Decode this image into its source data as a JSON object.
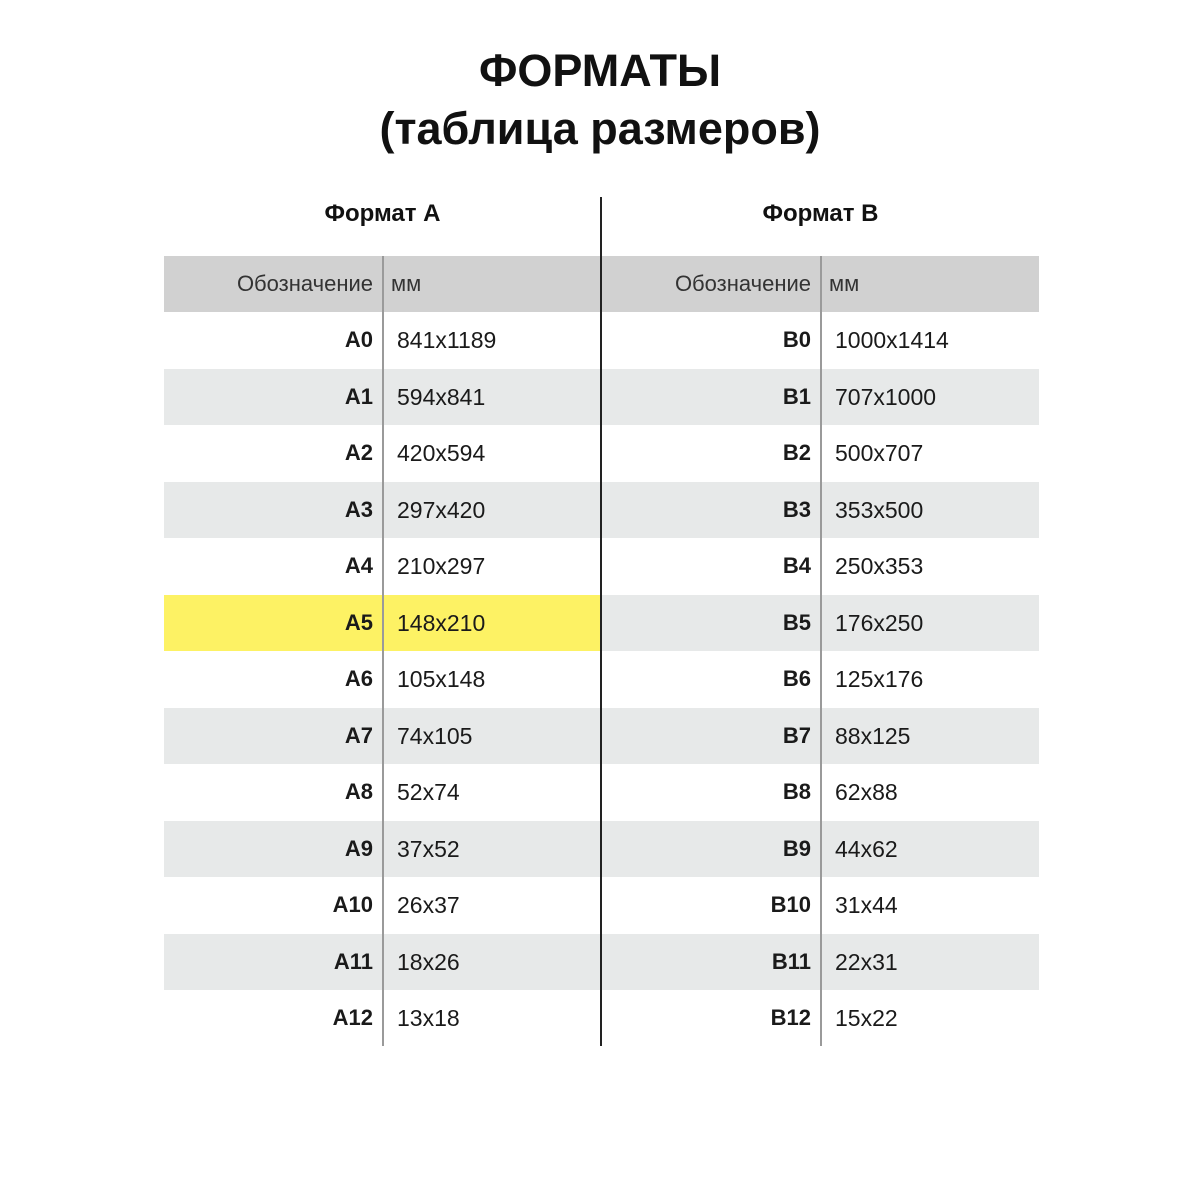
{
  "title_line1": "ФОРМАТЫ",
  "title_line2": "(таблица размеров)",
  "highlight_color": "#fdf264",
  "tables": [
    {
      "title": "Формат А",
      "header": {
        "code": "Обозначение",
        "size": "мм"
      },
      "highlighted": "A5",
      "rows": [
        {
          "code": "A0",
          "size": "841x1189"
        },
        {
          "code": "A1",
          "size": "594x841"
        },
        {
          "code": "A2",
          "size": "420x594"
        },
        {
          "code": "A3",
          "size": "297x420"
        },
        {
          "code": "A4",
          "size": "210x297"
        },
        {
          "code": "A5",
          "size": "148x210"
        },
        {
          "code": "A6",
          "size": "105x148"
        },
        {
          "code": "A7",
          "size": "74x105"
        },
        {
          "code": "A8",
          "size": "52x74"
        },
        {
          "code": "A9",
          "size": "37x52"
        },
        {
          "code": "A10",
          "size": "26x37"
        },
        {
          "code": "A11",
          "size": "18x26"
        },
        {
          "code": "A12",
          "size": "13x18"
        }
      ]
    },
    {
      "title": "Формат B",
      "header": {
        "code": "Обозначение",
        "size": "мм"
      },
      "highlighted": "",
      "rows": [
        {
          "code": "B0",
          "size": "1000x1414"
        },
        {
          "code": "B1",
          "size": "707x1000"
        },
        {
          "code": "B2",
          "size": "500x707"
        },
        {
          "code": "B3",
          "size": "353x500"
        },
        {
          "code": "B4",
          "size": "250x353"
        },
        {
          "code": "B5",
          "size": "176x250"
        },
        {
          "code": "B6",
          "size": "125x176"
        },
        {
          "code": "B7",
          "size": "88x125"
        },
        {
          "code": "B8",
          "size": "62x88"
        },
        {
          "code": "B9",
          "size": "44x62"
        },
        {
          "code": "B10",
          "size": "31x44"
        },
        {
          "code": "B11",
          "size": "22x31"
        },
        {
          "code": "B12",
          "size": "15x22"
        }
      ]
    }
  ]
}
